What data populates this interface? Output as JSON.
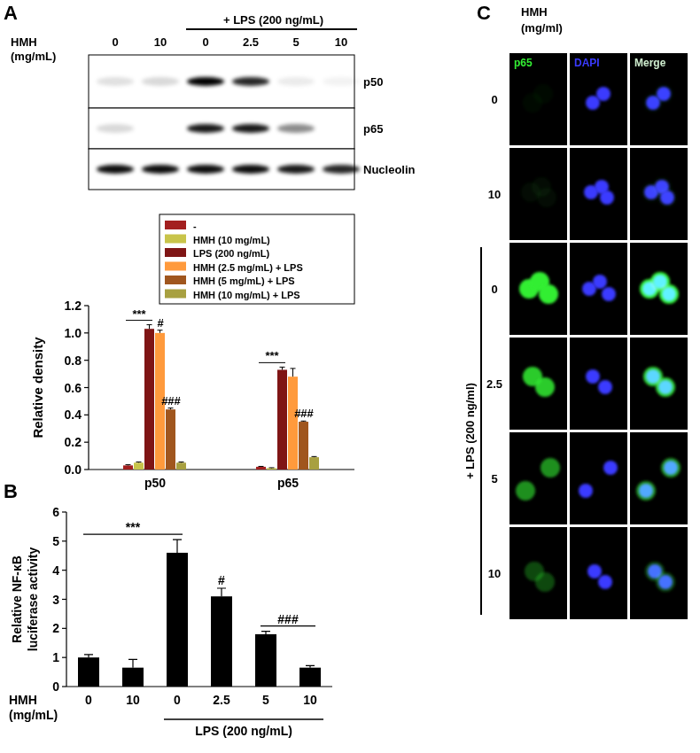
{
  "chart_data": [
    {
      "type": "bar",
      "categories": [
        "p50",
        "p65"
      ],
      "series": [
        {
          "name": "-",
          "color": "#a31f1f",
          "values": [
            0.03,
            0.02
          ],
          "errors": [
            0.005,
            0.003
          ]
        },
        {
          "name": "HMH (10 mg/mL)",
          "color": "#c8c44a",
          "values": [
            0.05,
            0.01
          ],
          "errors": [
            0.005,
            0.003
          ]
        },
        {
          "name": "LPS (200 ng/mL)",
          "color": "#7f1515",
          "values": [
            1.03,
            0.73
          ],
          "errors": [
            0.03,
            0.02
          ]
        },
        {
          "name": "HMH (2.5 mg/mL) + LPS",
          "color": "#ff9a3c",
          "values": [
            1.0,
            0.68
          ],
          "errors": [
            0.02,
            0.06
          ]
        },
        {
          "name": "HMH (5 mg/mL) + LPS",
          "color": "#a0561e",
          "values": [
            0.44,
            0.35
          ],
          "errors": [
            0.01,
            0.005
          ]
        },
        {
          "name": "HMH (10 mg/mL) + LPS",
          "color": "#a8a040",
          "values": [
            0.05,
            0.09
          ],
          "errors": [
            0.005,
            0.005
          ]
        }
      ],
      "ylim": [
        0,
        1.2
      ],
      "yticks": [
        {
          "value": 0,
          "label": "0.0"
        },
        0.2,
        0.4,
        0.6,
        0.8,
        {
          "value": 1,
          "label": "1.0"
        },
        1.2
      ],
      "y_label": "Relative density",
      "legend": "upper right",
      "annotations": [
        {
          "text": "***",
          "category": 0,
          "from": 0,
          "to": 2
        },
        {
          "text": "#",
          "category": 0,
          "from": 3,
          "to": 3
        },
        {
          "text": "###",
          "category": 0,
          "from": 4,
          "to": 4
        },
        {
          "text": "***",
          "category": 1,
          "from": 0,
          "to": 2
        },
        {
          "text": "###",
          "category": 1,
          "from": 4,
          "to": 4
        }
      ]
    },
    {
      "type": "bar",
      "panel_label": "B",
      "categories": [
        "0",
        "10",
        "0",
        "2.5",
        "5",
        "10"
      ],
      "values": [
        1.0,
        0.65,
        4.6,
        3.1,
        1.8,
        0.65
      ],
      "errors": [
        0.1,
        0.28,
        0.45,
        0.28,
        0.1,
        0.07
      ],
      "color": "#000000",
      "ylim": [
        0,
        6
      ],
      "yticks": [
        0,
        1,
        2,
        3,
        4,
        5,
        6
      ],
      "y_label": "Relative NF-κB luciferase activity",
      "x_row_label": "HMH (mg/mL)",
      "groups": [
        {
          "label": "LPS (200 ng/mL)",
          "from": 2,
          "to": 5
        }
      ],
      "annotations": [
        {
          "text": "***",
          "from": 0,
          "to": 2
        },
        {
          "text": "#",
          "from": 3,
          "to": 3
        },
        {
          "text": "###",
          "from": 4,
          "to": 5
        }
      ]
    }
  ],
  "blot": {
    "panel_label": "A",
    "row_label": "HMH (mg/mL)",
    "lanes": [
      "0",
      "10",
      "0",
      "2.5",
      "5",
      "10"
    ],
    "groups": [
      {
        "label": "+ LPS (200 ng/mL)",
        "from": 2,
        "to": 5
      }
    ],
    "bands": [
      {
        "label": "p50",
        "intensity": [
          0.12,
          0.15,
          1,
          0.85,
          0.08,
          0.05
        ]
      },
      {
        "label": "p65",
        "intensity": [
          0.15,
          0,
          0.9,
          0.9,
          0.45,
          0
        ]
      },
      {
        "label": "Nucleolin",
        "intensity": [
          0.95,
          0.95,
          0.95,
          0.95,
          0.9,
          0.85
        ]
      }
    ]
  },
  "microscopy": {
    "panel_label": "C",
    "row_label": "HMH (mg/ml)",
    "channels": [
      {
        "label": "p65",
        "color": "#33ee33"
      },
      {
        "label": "DAPI",
        "color": "#3a3aff"
      },
      {
        "label": "Merge",
        "color": "#cfeecf"
      }
    ],
    "rows": [
      "0",
      "10",
      "0",
      "2.5",
      "5",
      "10"
    ],
    "p65_intensity": [
      0.04,
      0.05,
      1,
      0.85,
      0.6,
      0.3
    ],
    "groups": [
      {
        "label": "+ LPS (200 ng/ml)",
        "from": 2,
        "to": 5
      }
    ]
  }
}
